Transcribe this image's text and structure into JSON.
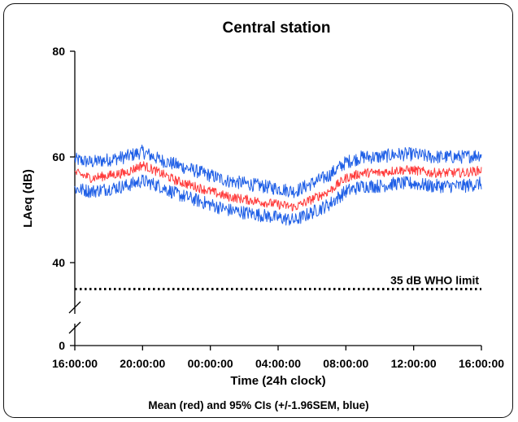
{
  "chart_data": {
    "type": "line",
    "title": "Central station",
    "xlabel": "Time (24h clock)",
    "ylabel": "LAeq (dB)",
    "caption": "Mean (red) and 95% CIs (+/-1.96SEM, blue)",
    "x_ticks": [
      "16:00:00",
      "20:00:00",
      "00:00:00",
      "04:00:00",
      "08:00:00",
      "12:00:00",
      "16:00:00"
    ],
    "y_ticks": [
      "0",
      "40",
      "60",
      "80"
    ],
    "y_axis_break": "between 0 and 40",
    "xlim_hours": [
      0,
      24
    ],
    "ylim": [
      35,
      80
    ],
    "grid": false,
    "reference_line": {
      "label": "35 dB WHO limit",
      "value": 35,
      "style": "dotted",
      "color": "#000000"
    },
    "series": [
      {
        "name": "Mean",
        "color": "#ff3b3b",
        "x_hours": [
          0,
          1,
          2,
          3,
          4,
          5,
          6,
          7,
          8,
          9,
          10,
          11,
          12,
          13,
          14,
          15,
          16,
          17,
          18,
          19,
          20,
          21,
          22,
          23,
          24
        ],
        "values": [
          57,
          56,
          56.5,
          57,
          58.5,
          57,
          55.5,
          54.5,
          53.5,
          52.5,
          52,
          51.5,
          51,
          50.5,
          52,
          53.5,
          56,
          57,
          57,
          57.5,
          57.5,
          57,
          57,
          57,
          57.5
        ]
      },
      {
        "name": "Upper 95% CI",
        "color": "#1f5fe6",
        "x_hours": [
          0,
          1,
          2,
          3,
          4,
          5,
          6,
          7,
          8,
          9,
          10,
          11,
          12,
          13,
          14,
          15,
          16,
          17,
          18,
          19,
          20,
          21,
          22,
          23,
          24
        ],
        "values": [
          59.5,
          59,
          59.5,
          60,
          61,
          59.5,
          58.5,
          57.5,
          56.5,
          55.5,
          55,
          54.5,
          54,
          53.5,
          55,
          56.5,
          59,
          60,
          60,
          60.5,
          60.5,
          60,
          60,
          60,
          60.5
        ]
      },
      {
        "name": "Lower 95% CI",
        "color": "#1f5fe6",
        "x_hours": [
          0,
          1,
          2,
          3,
          4,
          5,
          6,
          7,
          8,
          9,
          10,
          11,
          12,
          13,
          14,
          15,
          16,
          17,
          18,
          19,
          20,
          21,
          22,
          23,
          24
        ],
        "values": [
          54,
          53.5,
          54,
          54.5,
          55.5,
          54.5,
          53,
          52,
          51,
          50,
          49.5,
          49,
          48.5,
          48,
          49.5,
          51,
          53.5,
          54.5,
          54.5,
          55,
          55,
          54.5,
          54.5,
          54.5,
          55
        ]
      }
    ]
  }
}
